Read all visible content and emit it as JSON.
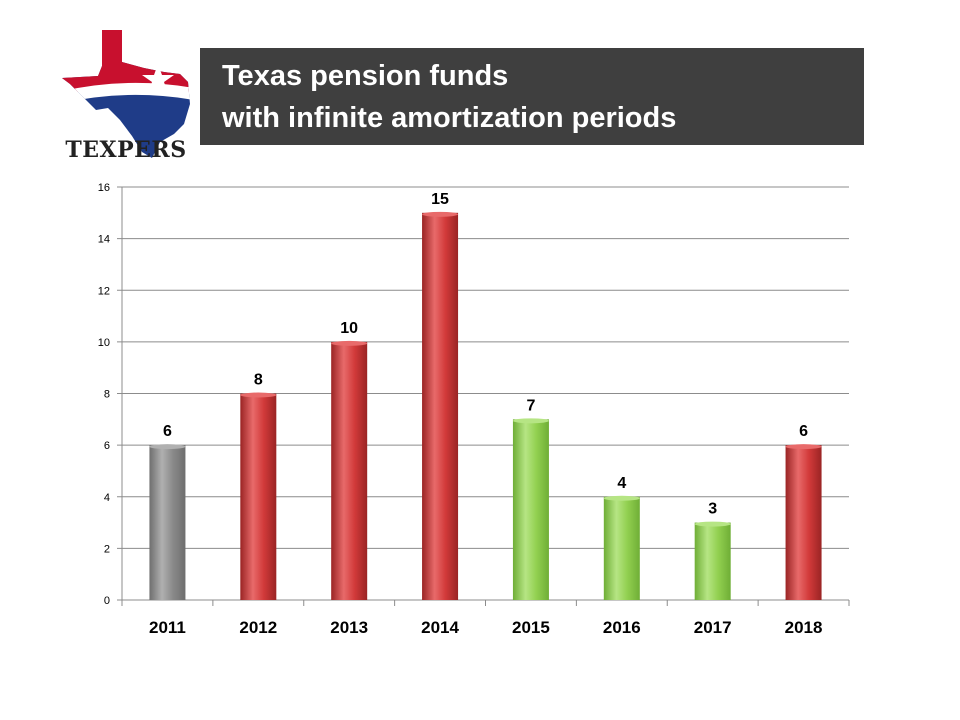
{
  "header": {
    "title_line1": "Texas pension funds",
    "title_line2": "with infinite amortization periods",
    "logo_text": "TEXPERS"
  },
  "colors": {
    "title_background": "#3f3f3f",
    "title_text": "#ffffff",
    "bar_gray": "#8a8a8a",
    "bar_red": "#d23a3a",
    "bar_green": "#92d050",
    "logo_red": "#c8102e",
    "logo_blue": "#1f3c88"
  },
  "chart_data": {
    "type": "bar",
    "categories": [
      "2011",
      "2012",
      "2013",
      "2014",
      "2015",
      "2016",
      "2017",
      "2018"
    ],
    "values": [
      6,
      8,
      10,
      15,
      7,
      4,
      3,
      6
    ],
    "bar_colors": [
      "gray",
      "red",
      "red",
      "red",
      "green",
      "green",
      "green",
      "red"
    ],
    "data_labels": [
      "6",
      "8",
      "10",
      "15",
      "7",
      "4",
      "3",
      "6"
    ],
    "title": "",
    "xlabel": "",
    "ylabel": "",
    "ylim": [
      0,
      16
    ],
    "yticks": [
      0,
      2,
      4,
      6,
      8,
      10,
      12,
      14,
      16
    ],
    "grid": true,
    "legend": "none"
  }
}
